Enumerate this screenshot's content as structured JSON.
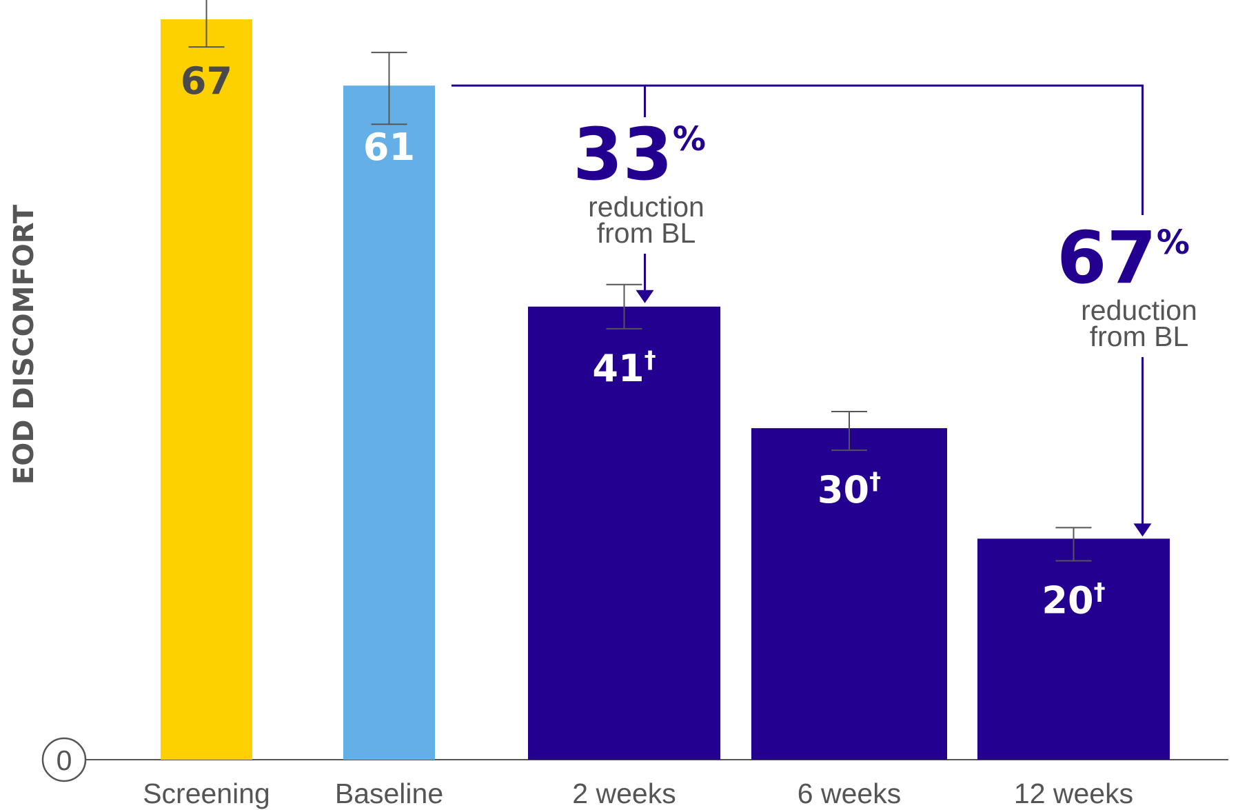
{
  "chart_data": {
    "type": "bar",
    "ylabel": "EOD DISCOMFORT",
    "y_tick_label": "0",
    "categories": [
      "Screening",
      "Baseline",
      "2 weeks",
      "6 weeks",
      "12 weeks"
    ],
    "values": [
      67,
      61,
      41,
      30,
      20
    ],
    "error_bars": [
      [
        64.5,
        69
      ],
      [
        57.5,
        64
      ],
      [
        39,
        43
      ],
      [
        28,
        31.5
      ],
      [
        18,
        21
      ]
    ],
    "value_labels": [
      "67",
      "61",
      "41",
      "30",
      "20"
    ],
    "value_marks": [
      "",
      "",
      "†",
      "†",
      "†"
    ],
    "bar_colors": [
      "#FDD100",
      "#64B0E6",
      "#230090",
      "#230090",
      "#230090"
    ],
    "label_colors": [
      "#4A4A4A",
      "#FFFFFF",
      "#FFFFFF",
      "#FFFFFF",
      "#FFFFFF"
    ],
    "ylim": [
      0,
      67
    ],
    "annotations": [
      {
        "value": "33",
        "symbol": "%",
        "line1": "reduction",
        "line2": "from BL",
        "from": "Baseline",
        "to": "2 weeks"
      },
      {
        "value": "67",
        "symbol": "%",
        "line1": "reduction",
        "line2": "from BL",
        "from": "Baseline",
        "to": "12 weeks"
      }
    ],
    "colors": {
      "accent": "#230090",
      "axis": "#555555",
      "text": "#555555"
    }
  }
}
